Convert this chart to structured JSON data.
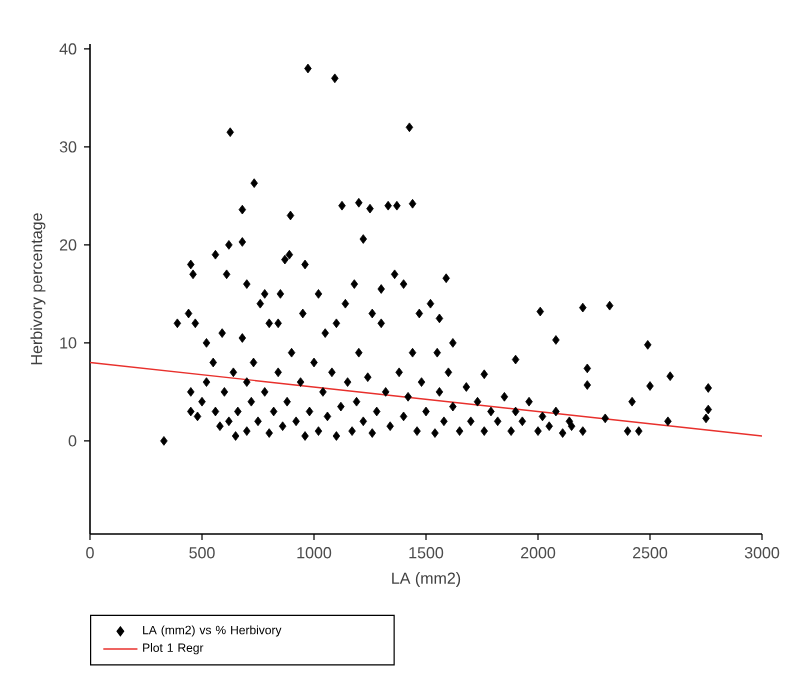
{
  "chart_data": {
    "type": "scatter",
    "xlabel": "LA (mm2)",
    "ylabel": "Herbivory percentage",
    "xlim": [
      0,
      3000
    ],
    "ylim": [
      -9.5,
      40.5
    ],
    "xticks": [
      0,
      500,
      1000,
      1500,
      2000,
      2500,
      3000
    ],
    "yticks": [
      0,
      10,
      20,
      30,
      40
    ],
    "grid": false,
    "legend": "bottom left",
    "series": [
      {
        "name": "LA (mm2) vs % Herbivory",
        "marker": "diamond",
        "color": "#000000",
        "x": [
          330,
          973,
          1093,
          626,
          733,
          680,
          895,
          1125,
          1200,
          1250,
          1370,
          1220,
          680,
          620,
          560,
          890,
          870,
          960,
          450,
          460,
          390,
          440,
          1426,
          1440,
          1331,
          1590,
          2010,
          2200,
          2320,
          2080,
          2490,
          2220,
          2220,
          2500,
          2590,
          2760,
          2760,
          2750,
          2420,
          2300,
          2400,
          2450,
          2150,
          2200,
          2580,
          1900,
          1760,
          1560,
          1620,
          450,
          450,
          480,
          500,
          520,
          520,
          550,
          560,
          580,
          600,
          620,
          640,
          650,
          660,
          680,
          700,
          700,
          720,
          730,
          750,
          760,
          780,
          800,
          800,
          820,
          840,
          850,
          860,
          880,
          900,
          920,
          940,
          950,
          960,
          980,
          1000,
          1020,
          1040,
          1050,
          1060,
          1080,
          1100,
          1120,
          1140,
          1150,
          1170,
          1190,
          1200,
          1220,
          1240,
          1260,
          1280,
          1300,
          1320,
          1340,
          1360,
          1380,
          1400,
          1420,
          1440,
          1460,
          1480,
          1500,
          1520,
          1540,
          1560,
          1580,
          1600,
          1620,
          1650,
          1680,
          1700,
          1730,
          1760,
          1790,
          1820,
          1850,
          1880,
          1900,
          1930,
          1960,
          2000,
          2020,
          2050,
          2080,
          2110,
          2140,
          590,
          470,
          610,
          700,
          780,
          840,
          1020,
          1180,
          1300,
          1400,
          1470,
          1550,
          1260,
          1100
        ],
        "values": [
          0,
          38,
          37,
          31.5,
          26.3,
          23.6,
          23,
          24,
          24.3,
          23.7,
          24,
          20.6,
          20.3,
          20,
          19,
          19,
          18.5,
          18,
          18,
          17,
          12,
          13,
          32,
          24.2,
          24,
          16.6,
          13.2,
          13.6,
          13.8,
          10.3,
          9.8,
          7.4,
          5.7,
          5.6,
          6.6,
          5.4,
          3.2,
          2.3,
          4,
          2.3,
          1,
          1,
          1.5,
          1,
          2,
          8.3,
          6.8,
          12.5,
          10,
          5,
          3,
          2.5,
          4,
          6,
          10,
          8,
          3,
          1.5,
          5,
          2,
          7,
          0.5,
          3,
          10.5,
          6,
          1,
          4,
          8,
          2,
          14,
          5,
          0.8,
          12,
          3,
          7,
          15,
          1.5,
          4,
          9,
          2,
          6,
          13,
          0.5,
          3,
          8,
          1,
          5,
          11,
          2.5,
          7,
          0.5,
          3.5,
          14,
          6,
          1,
          4,
          9,
          2,
          6.5,
          0.8,
          3,
          12,
          5,
          1.5,
          17,
          7,
          2.5,
          4.5,
          9,
          1,
          6,
          3,
          14,
          0.8,
          5,
          2,
          7,
          3.5,
          1,
          5.5,
          2,
          4,
          1,
          3,
          2,
          4.5,
          1,
          3,
          2,
          4,
          1,
          2.5,
          1.5,
          3,
          0.8,
          2,
          11,
          12,
          17,
          16,
          15,
          12,
          15,
          16,
          15.5,
          16,
          13,
          9,
          13,
          12
        ]
      },
      {
        "name": "Plot 1 Regr",
        "type": "line",
        "color": "#e8302c",
        "x": [
          0,
          3000
        ],
        "values": [
          8,
          0.5
        ]
      }
    ]
  }
}
